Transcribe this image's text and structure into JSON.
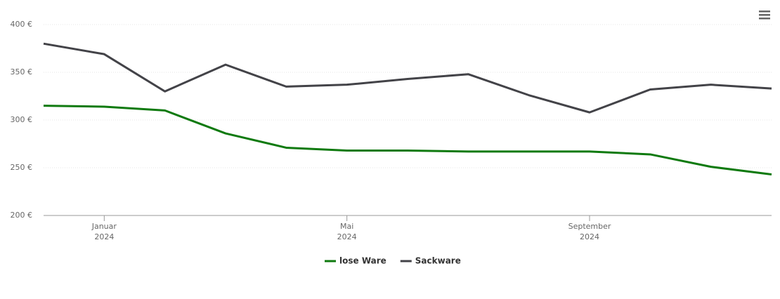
{
  "chart_data": {
    "type": "line",
    "x": [
      "2023-12",
      "2024-01",
      "2024-02",
      "2024-03",
      "2024-04",
      "2024-05",
      "2024-06",
      "2024-07",
      "2024-08",
      "2024-09",
      "2024-10",
      "2024-11",
      "2024-12"
    ],
    "xlim": [
      "2023-12",
      "2024-12"
    ],
    "xticks": [
      {
        "value": "2024-01",
        "label": [
          "Januar",
          "2024"
        ]
      },
      {
        "value": "2024-05",
        "label": [
          "Mai",
          "2024"
        ]
      },
      {
        "value": "2024-09",
        "label": [
          "September",
          "2024"
        ]
      }
    ],
    "ylim": [
      200,
      400
    ],
    "yticks": [
      {
        "value": 200,
        "label": "200 €"
      },
      {
        "value": 250,
        "label": "250 €"
      },
      {
        "value": 300,
        "label": "300 €"
      },
      {
        "value": 350,
        "label": "350 €"
      },
      {
        "value": 400,
        "label": "400 €"
      }
    ],
    "grid": true,
    "legend": "bottom",
    "series": [
      {
        "name": "lose Ware",
        "color": "#0f7a0f",
        "values": [
          315,
          314,
          310,
          286,
          271,
          268,
          268,
          267,
          267,
          267,
          264,
          251,
          243
        ]
      },
      {
        "name": "Sackware",
        "color": "#434348",
        "values": [
          380,
          369,
          330,
          358,
          335,
          337,
          343,
          348,
          326,
          308,
          332,
          337,
          333
        ]
      }
    ]
  }
}
